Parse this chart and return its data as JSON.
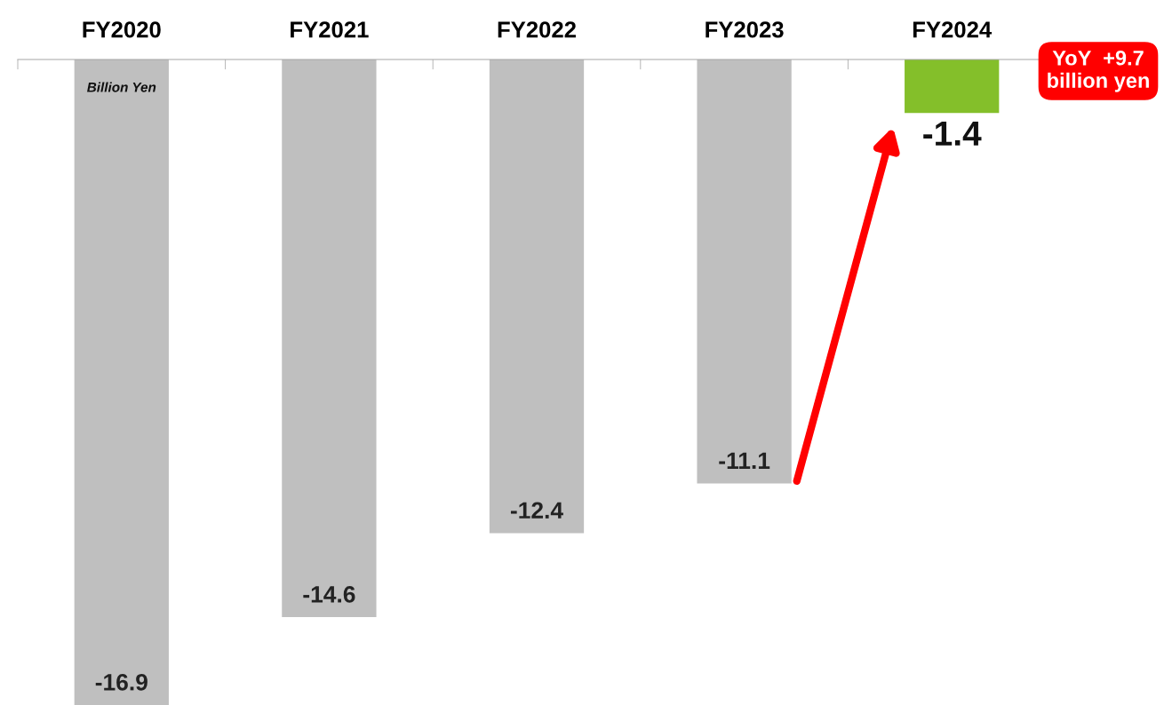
{
  "chart_data": {
    "type": "bar",
    "categories": [
      "FY2020",
      "FY2021",
      "FY2022",
      "FY2023",
      "FY2024"
    ],
    "values": [
      -16.9,
      -14.6,
      -12.4,
      -11.1,
      -1.4
    ],
    "colors": [
      "#bfbfbf",
      "#bfbfbf",
      "#bfbfbf",
      "#bfbfbf",
      "#84bf2a"
    ],
    "data_labels": true,
    "grid": false,
    "legend": false,
    "annotations": [
      "Billion Yen",
      "YoY  +9.7\nbillion yen"
    ]
  }
}
